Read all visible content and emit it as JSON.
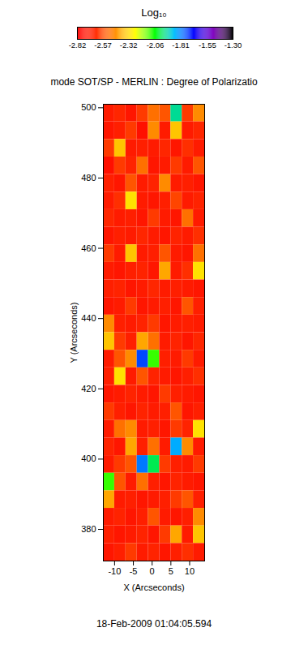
{
  "chart_data": {
    "type": "heatmap",
    "title": "mode SOT/SP - MERLIN : Degree of Polarizatio",
    "caption": "18-Feb-2009 01:04:05.594",
    "x_label": "X (Arcseconds)",
    "y_label": "Y (Arcseconds)",
    "xlim": [
      -13,
      14
    ],
    "ylim": [
      371,
      501
    ],
    "xticks": [
      -10,
      -5,
      0,
      5,
      10
    ],
    "yticks": [
      380,
      400,
      420,
      440,
      460,
      480,
      500
    ],
    "x": [
      -11.5,
      -8.5,
      -5.5,
      -2.5,
      0.5,
      3.5,
      6.5,
      9.5,
      12.5
    ],
    "y": [
      498.5,
      493.5,
      488.5,
      483.5,
      478.5,
      473.5,
      468.5,
      463.5,
      458.5,
      453.5,
      448.5,
      443.5,
      438.5,
      433.5,
      428.5,
      423.5,
      418.5,
      413.5,
      408.5,
      403.5,
      398.5,
      393.5,
      388.5,
      383.5,
      378.5,
      373.5
    ],
    "values": [
      [
        -2.7,
        -2.65,
        -2.72,
        -2.6,
        -2.5,
        -2.55,
        -1.95,
        -2.6,
        -2.45
      ],
      [
        -2.72,
        -2.68,
        -2.6,
        -2.75,
        -2.45,
        -2.7,
        -2.35,
        -2.7,
        -2.65
      ],
      [
        -2.6,
        -2.35,
        -2.7,
        -2.68,
        -2.7,
        -2.65,
        -2.72,
        -2.62,
        -2.7
      ],
      [
        -2.75,
        -2.6,
        -2.66,
        -2.5,
        -2.72,
        -2.7,
        -2.6,
        -2.7,
        -2.55
      ],
      [
        -2.68,
        -2.72,
        -2.55,
        -2.7,
        -2.66,
        -2.45,
        -2.7,
        -2.68,
        -2.72
      ],
      [
        -2.7,
        -2.62,
        -2.3,
        -2.7,
        -2.72,
        -2.68,
        -2.58,
        -2.7,
        -2.66
      ],
      [
        -2.65,
        -2.7,
        -2.68,
        -2.72,
        -2.6,
        -2.7,
        -2.72,
        -2.5,
        -2.7
      ],
      [
        -2.72,
        -2.68,
        -2.7,
        -2.65,
        -2.7,
        -2.72,
        -2.66,
        -2.7,
        -2.62
      ],
      [
        -2.6,
        -2.7,
        -2.35,
        -2.7,
        -2.68,
        -2.55,
        -2.7,
        -2.72,
        -2.5
      ],
      [
        -2.7,
        -2.72,
        -2.68,
        -2.66,
        -2.72,
        -2.4,
        -2.7,
        -2.62,
        -2.3
      ],
      [
        -2.68,
        -2.66,
        -2.72,
        -2.7,
        -2.65,
        -2.7,
        -2.68,
        -2.7,
        -2.72
      ],
      [
        -2.72,
        -2.7,
        -2.6,
        -2.72,
        -2.7,
        -2.68,
        -2.72,
        -2.55,
        -2.68
      ],
      [
        -2.45,
        -2.68,
        -2.7,
        -2.66,
        -2.6,
        -2.72,
        -2.7,
        -2.68,
        -2.7
      ],
      [
        -2.35,
        -2.6,
        -2.68,
        -2.4,
        -2.5,
        -2.7,
        -2.66,
        -2.72,
        -2.65
      ],
      [
        -2.7,
        -2.55,
        -2.45,
        -1.75,
        -2.1,
        -2.68,
        -2.7,
        -2.6,
        -2.7
      ],
      [
        -2.68,
        -2.3,
        -2.7,
        -2.55,
        -2.66,
        -2.7,
        -2.72,
        -2.68,
        -2.62
      ],
      [
        -2.72,
        -2.7,
        -2.66,
        -2.7,
        -2.72,
        -2.6,
        -2.68,
        -2.7,
        -2.72
      ],
      [
        -2.6,
        -2.68,
        -2.72,
        -2.66,
        -2.7,
        -2.68,
        -2.55,
        -2.72,
        -2.68
      ],
      [
        -2.7,
        -2.5,
        -2.45,
        -2.7,
        -2.68,
        -2.72,
        -2.6,
        -2.66,
        -2.3
      ],
      [
        -2.66,
        -2.72,
        -2.4,
        -2.68,
        -2.5,
        -2.7,
        -1.85,
        -2.45,
        -2.7
      ],
      [
        -2.7,
        -2.6,
        -2.55,
        -1.8,
        -2.0,
        -2.6,
        -2.68,
        -2.7,
        -2.6
      ],
      [
        -2.1,
        -2.55,
        -2.7,
        -2.5,
        -2.68,
        -2.72,
        -2.66,
        -2.7,
        -2.72
      ],
      [
        -2.4,
        -2.7,
        -2.68,
        -2.72,
        -2.7,
        -2.68,
        -2.6,
        -2.55,
        -2.68
      ],
      [
        -2.7,
        -2.66,
        -2.72,
        -2.68,
        -2.55,
        -2.7,
        -2.72,
        -2.68,
        -2.45
      ],
      [
        -2.68,
        -2.72,
        -2.7,
        -2.66,
        -2.72,
        -2.6,
        -2.4,
        -2.7,
        -2.35
      ],
      [
        -2.72,
        -2.68,
        -2.6,
        -2.7,
        -2.66,
        -2.72,
        -2.68,
        -2.62,
        -2.7
      ]
    ],
    "colorbar": {
      "label": "Log₁₀",
      "range": [
        -2.82,
        -1.3
      ],
      "ticks": [
        -2.82,
        -2.57,
        -2.32,
        -2.06,
        -1.81,
        -1.55,
        {
          "value": -1.3,
          "label": "-1.30"
        }
      ]
    }
  }
}
